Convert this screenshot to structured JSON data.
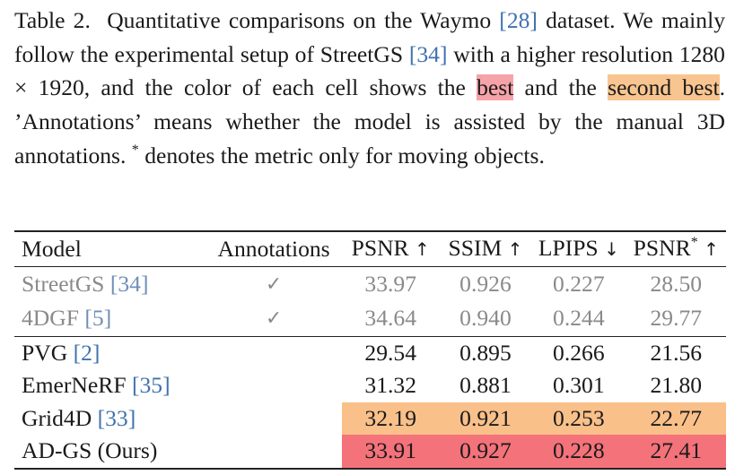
{
  "caption": {
    "table_label": "Table 2.",
    "s1_a": "Quantitative comparisons on the Waymo ",
    "cite_waymo": "[28]",
    "s1_b": " dataset. We mainly follow the experimental setup of StreetGS ",
    "cite_streetgs": "[34]",
    "s1_c": " with a higher resolution 1280 × 1920, and the color of each cell shows the ",
    "best_word": "best",
    "s1_d": " and the ",
    "second_word": "second best",
    "s1_e": ". ’Annotations’ means whether the model is assisted by the manual 3D annotations. ",
    "star": "*",
    "s1_f": " denotes the metric only for moving objects."
  },
  "table": {
    "headers": {
      "model": "Model",
      "annotations": "Annotations",
      "psnr": "PSNR",
      "psnr_arrow": "↑",
      "ssim": "SSIM",
      "ssim_arrow": "↑",
      "lpips": "LPIPS",
      "lpips_arrow": "↓",
      "psnr_star": "PSNR",
      "psnr_star_sup": "*",
      "psnr_star_arrow": "↑"
    },
    "rows": [
      {
        "model": "StreetGS",
        "cite": "[34]",
        "annotations": "✓",
        "psnr": "33.97",
        "ssim": "0.926",
        "lpips": "0.227",
        "psnr_star": "28.50"
      },
      {
        "model": "4DGF",
        "cite": "[5]",
        "annotations": "✓",
        "psnr": "34.64",
        "ssim": "0.940",
        "lpips": "0.244",
        "psnr_star": "29.77"
      },
      {
        "model": "PVG",
        "cite": "[2]",
        "annotations": "",
        "psnr": "29.54",
        "ssim": "0.895",
        "lpips": "0.266",
        "psnr_star": "21.56"
      },
      {
        "model": "EmerNeRF",
        "cite": "[35]",
        "annotations": "",
        "psnr": "31.32",
        "ssim": "0.881",
        "lpips": "0.301",
        "psnr_star": "21.80"
      },
      {
        "model": "Grid4D",
        "cite": "[33]",
        "annotations": "",
        "psnr": "32.19",
        "ssim": "0.921",
        "lpips": "0.253",
        "psnr_star": "22.77"
      },
      {
        "model": "AD-GS (Ours)",
        "cite": "",
        "annotations": "",
        "psnr": "33.91",
        "ssim": "0.927",
        "lpips": "0.228",
        "psnr_star": "27.41"
      }
    ]
  },
  "colors": {
    "best": "#f4727a",
    "second_best": "#f9c08a",
    "citation": "#3f72af"
  }
}
